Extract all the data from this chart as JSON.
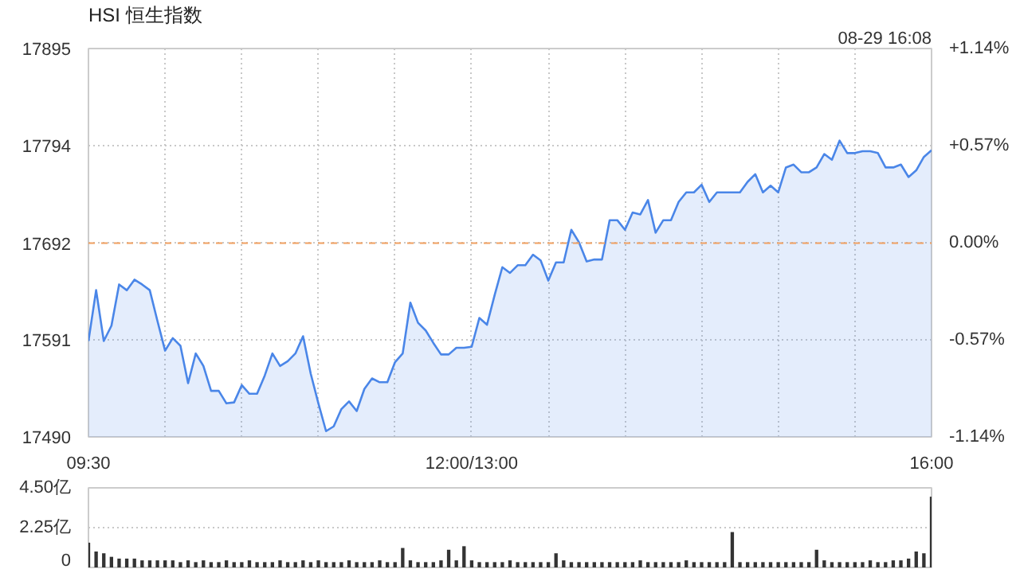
{
  "chart_data": [
    {
      "type": "area",
      "title": "HSI 恒生指数",
      "annotations": [
        "08-29 16:08"
      ],
      "categories": [
        "09:30",
        null,
        null,
        null,
        null,
        null,
        null,
        null,
        null,
        null,
        null,
        null,
        null,
        null,
        null,
        null,
        null,
        null,
        null,
        null,
        null,
        null,
        null,
        null,
        null,
        null,
        null,
        null,
        null,
        null,
        null,
        null,
        null,
        null,
        null,
        null,
        null,
        null,
        null,
        null,
        null,
        null,
        null,
        null,
        null,
        null,
        null,
        null,
        null,
        null,
        "12:00/13:00",
        null,
        null,
        null,
        null,
        null,
        null,
        null,
        null,
        null,
        null,
        null,
        null,
        null,
        null,
        null,
        null,
        null,
        null,
        null,
        null,
        null,
        null,
        null,
        null,
        null,
        null,
        null,
        null,
        null,
        null,
        null,
        null,
        null,
        null,
        null,
        null,
        null,
        null,
        null,
        null,
        null,
        null,
        null,
        null,
        null,
        null,
        null,
        null,
        null,
        null,
        null,
        null,
        null,
        null,
        null,
        null,
        null,
        null,
        null,
        "16:00"
      ],
      "series": [
        {
          "color": "#4a86e8",
          "values": [
            17590,
            17643,
            17590,
            17606,
            17649,
            17643,
            17654,
            17649,
            17643,
            17611,
            17580,
            17593,
            17585,
            17546,
            17577,
            17564,
            17538,
            17538,
            17525,
            17526,
            17544,
            17535,
            17535,
            17554,
            17577,
            17564,
            17569,
            17577,
            17595,
            17556,
            17525,
            17496,
            17501,
            17519,
            17527,
            17517,
            17540,
            17551,
            17547,
            17547,
            17568,
            17577,
            17630,
            17609,
            17601,
            17588,
            17576,
            17576,
            17583,
            17583,
            17584,
            17614,
            17607,
            17638,
            17667,
            17661,
            17669,
            17669,
            17680,
            17674,
            17653,
            17672,
            17672,
            17706,
            17693,
            17673,
            17675,
            17675,
            17716,
            17716,
            17706,
            17724,
            17722,
            17737,
            17703,
            17716,
            17716,
            17735,
            17745,
            17745,
            17753,
            17735,
            17745,
            17745,
            17745,
            17745,
            17756,
            17764,
            17745,
            17752,
            17745,
            17771,
            17774,
            17766,
            17766,
            17771,
            17785,
            17779,
            17799,
            17786,
            17786,
            17788,
            17788,
            17786,
            17771,
            17771,
            17774,
            17761,
            17768,
            17782,
            17789
          ]
        }
      ],
      "ylim": [
        17490,
        17895
      ],
      "yticks": [
        17490,
        17591,
        17692,
        17794,
        17895
      ],
      "y2lim": [
        -1.14,
        1.14
      ],
      "y2ticks": [
        {
          "value": -1.14,
          "label": "-1.14%"
        },
        {
          "value": -0.57,
          "label": "-0.57%"
        },
        {
          "value": 0,
          "label": "0.00%"
        },
        {
          "value": 0.57,
          "label": "+0.57%"
        },
        {
          "value": 1.14,
          "label": "+1.14%"
        }
      ],
      "ref_lines": [
        {
          "axis": "y",
          "value": 17692,
          "color": "#f0a060",
          "line_style": "dashed"
        }
      ],
      "grid": true
    },
    {
      "type": "bar",
      "categories": [
        null,
        null,
        null,
        null,
        null,
        null,
        null,
        null,
        null,
        null,
        null,
        null,
        null,
        null,
        null,
        null,
        null,
        null,
        null,
        null,
        null,
        null,
        null,
        null,
        null,
        null,
        null,
        null,
        null,
        null,
        null,
        null,
        null,
        null,
        null,
        null,
        null,
        null,
        null,
        null,
        null,
        null,
        null,
        null,
        null,
        null,
        null,
        null,
        null,
        null,
        null,
        null,
        null,
        null,
        null,
        null,
        null,
        null,
        null,
        null,
        null,
        null,
        null,
        null,
        null,
        null,
        null,
        null,
        null,
        null,
        null,
        null,
        null,
        null,
        null,
        null,
        null,
        null,
        null,
        null,
        null,
        null,
        null,
        null,
        null,
        null,
        null,
        null,
        null,
        null,
        null,
        null,
        null,
        null,
        null,
        null,
        null,
        null,
        null,
        null,
        null,
        null,
        null,
        null,
        null,
        null,
        null,
        null,
        null,
        null,
        null
      ],
      "values": [
        1.4,
        0.9,
        0.8,
        0.6,
        0.5,
        0.5,
        0.5,
        0.4,
        0.4,
        0.4,
        0.4,
        0.4,
        0.3,
        0.4,
        0.3,
        0.4,
        0.3,
        0.3,
        0.4,
        0.3,
        0.3,
        0.4,
        0.3,
        0.3,
        0.3,
        0.4,
        0.3,
        0.3,
        0.4,
        0.3,
        0.4,
        0.3,
        0.3,
        0.3,
        0.4,
        0.3,
        0.3,
        0.3,
        0.4,
        0.3,
        0.3,
        1.1,
        0.4,
        0.3,
        0.3,
        0.3,
        0.4,
        1.0,
        0.4,
        1.2,
        0.4,
        0.3,
        0.3,
        0.3,
        0.3,
        0.4,
        0.3,
        0.3,
        0.3,
        0.3,
        0.3,
        0.8,
        0.4,
        0.3,
        0.3,
        0.3,
        0.3,
        0.3,
        0.3,
        0.3,
        0.3,
        0.3,
        0.4,
        0.3,
        0.3,
        0.3,
        0.3,
        0.3,
        0.4,
        0.3,
        0.3,
        0.3,
        0.3,
        0.3,
        2.0,
        0.3,
        0.3,
        0.3,
        0.3,
        0.3,
        0.3,
        0.3,
        0.3,
        0.3,
        0.3,
        1.0,
        0.4,
        0.3,
        0.3,
        0.3,
        0.3,
        0.3,
        0.4,
        0.3,
        0.3,
        0.4,
        0.4,
        0.5,
        0.9,
        0.8,
        4.0
      ],
      "color": "#333333",
      "ylim": [
        0,
        4.5
      ],
      "yticks": [
        {
          "value": 0,
          "label": "0"
        },
        {
          "value": 2.25,
          "label": "2.25亿"
        },
        {
          "value": 4.5,
          "label": "4.50亿"
        }
      ],
      "tick_labels": "y",
      "grid": "y"
    }
  ]
}
